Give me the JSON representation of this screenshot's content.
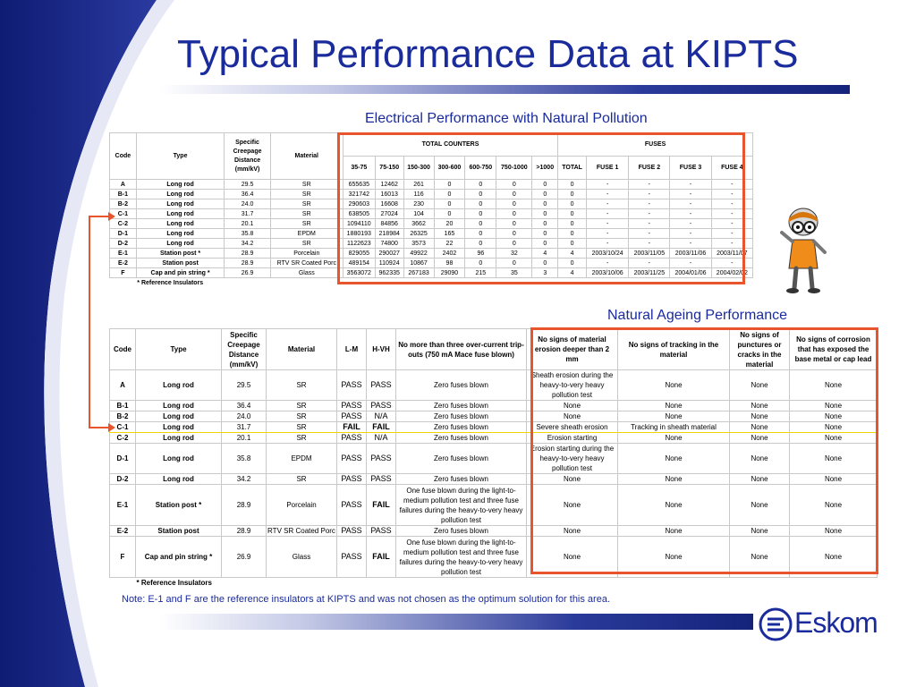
{
  "slide": {
    "title": "Typical Performance Data at KIPTS",
    "note": "Note: E-1 and F are the reference insulators at KIPTS and was not chosen as the optimum solution for this area."
  },
  "electrical": {
    "title": "Electrical Performance with Natural Pollution",
    "headers": {
      "code": "Code",
      "type": "Type",
      "creepage": "Specific Creepage Distance (mm/kV)",
      "material": "Material",
      "total_counters": "TOTAL COUNTERS",
      "fuses": "FUSES",
      "counter_ranges": [
        "35-75",
        "75-150",
        "150-300",
        "300-600",
        "600-750",
        "750-1000",
        ">1000"
      ],
      "total": "TOTAL",
      "fuse_cols": [
        "FUSE 1",
        "FUSE 2",
        "FUSE 3",
        "FUSE 4"
      ]
    },
    "rows": [
      {
        "code": "A",
        "type": "Long rod",
        "creepage": "29.5",
        "material": "SR",
        "counters": [
          "655635",
          "12462",
          "261",
          "0",
          "0",
          "0",
          "0"
        ],
        "total": "0",
        "fuses": [
          "-",
          "-",
          "-",
          "-"
        ]
      },
      {
        "code": "B-1",
        "type": "Long rod",
        "creepage": "36.4",
        "material": "SR",
        "counters": [
          "321742",
          "16013",
          "116",
          "0",
          "0",
          "0",
          "0"
        ],
        "total": "0",
        "fuses": [
          "-",
          "-",
          "-",
          "-"
        ]
      },
      {
        "code": "B-2",
        "type": "Long rod",
        "creepage": "24.0",
        "material": "SR",
        "counters": [
          "290603",
          "16608",
          "230",
          "0",
          "0",
          "0",
          "0"
        ],
        "total": "0",
        "fuses": [
          "-",
          "-",
          "-",
          "-"
        ]
      },
      {
        "code": "C-1",
        "type": "Long rod",
        "creepage": "31.7",
        "material": "SR",
        "counters": [
          "638505",
          "27024",
          "104",
          "0",
          "0",
          "0",
          "0"
        ],
        "total": "0",
        "fuses": [
          "-",
          "-",
          "-",
          "-"
        ]
      },
      {
        "code": "C-2",
        "type": "Long rod",
        "creepage": "20.1",
        "material": "SR",
        "counters": [
          "1094110",
          "84856",
          "3662",
          "20",
          "0",
          "0",
          "0"
        ],
        "total": "0",
        "fuses": [
          "-",
          "-",
          "-",
          "-"
        ]
      },
      {
        "code": "D-1",
        "type": "Long rod",
        "creepage": "35.8",
        "material": "EPDM",
        "counters": [
          "1880193",
          "218984",
          "26325",
          "165",
          "0",
          "0",
          "0"
        ],
        "total": "0",
        "fuses": [
          "-",
          "-",
          "-",
          "-"
        ]
      },
      {
        "code": "D-2",
        "type": "Long rod",
        "creepage": "34.2",
        "material": "SR",
        "counters": [
          "1122623",
          "74800",
          "3573",
          "22",
          "0",
          "0",
          "0"
        ],
        "total": "0",
        "fuses": [
          "-",
          "-",
          "-",
          "-"
        ]
      },
      {
        "code": "E-1",
        "type": "Station post *",
        "creepage": "28.9",
        "material": "Porcelain",
        "counters": [
          "829055",
          "290027",
          "49922",
          "2402",
          "96",
          "32",
          "4"
        ],
        "total": "4",
        "fuses": [
          "2003/10/24",
          "2003/11/05",
          "2003/11/06",
          "2003/11/07"
        ]
      },
      {
        "code": "E-2",
        "type": "Station post",
        "creepage": "28.9",
        "material": "RTV SR Coated Porc",
        "counters": [
          "489154",
          "110924",
          "10867",
          "98",
          "0",
          "0",
          "0"
        ],
        "total": "0",
        "fuses": [
          "-",
          "-",
          "-",
          "-"
        ]
      },
      {
        "code": "F",
        "type": "Cap and pin string *",
        "creepage": "26.9",
        "material": "Glass",
        "counters": [
          "3563072",
          "962335",
          "267183",
          "29090",
          "215",
          "35",
          "3"
        ],
        "total": "4",
        "fuses": [
          "2003/10/06",
          "2003/11/25",
          "2004/01/06",
          "2004/02/02"
        ]
      }
    ],
    "footnote": "* Reference Insulators"
  },
  "ageing": {
    "title": "Natural Ageing Performance",
    "headers": {
      "code": "Code",
      "type": "Type",
      "creepage": "Specific Creepage Distance (mm/kV)",
      "material": "Material",
      "lm": "L-M",
      "hvh": "H-VH",
      "trip": "No more than three over-current trip-outs (750 mA Mace fuse blown)",
      "erosion": "No signs of material erosion deeper than 2 mm",
      "tracking": "No signs of tracking in the material",
      "punctures": "No signs of punctures or cracks in the material",
      "corrosion": "No signs of corrosion that has exposed the base metal or cap lead"
    },
    "rows": [
      {
        "code": "A",
        "type": "Long rod",
        "creepage": "29.5",
        "material": "SR",
        "lm": "PASS",
        "hvh": "PASS",
        "trip": "Zero fuses blown",
        "erosion": "Sheath erosion during the heavy-to-very heavy pollution test",
        "tracking": "None",
        "punctures": "None",
        "corrosion": "None"
      },
      {
        "code": "B-1",
        "type": "Long rod",
        "creepage": "36.4",
        "material": "SR",
        "lm": "PASS",
        "hvh": "PASS",
        "trip": "Zero fuses blown",
        "erosion": "None",
        "tracking": "None",
        "punctures": "None",
        "corrosion": "None"
      },
      {
        "code": "B-2",
        "type": "Long rod",
        "creepage": "24.0",
        "material": "SR",
        "lm": "PASS",
        "hvh": "N/A",
        "trip": "Zero fuses blown",
        "erosion": "None",
        "tracking": "None",
        "punctures": "None",
        "corrosion": "None"
      },
      {
        "code": "C-1",
        "type": "Long rod",
        "creepage": "31.7",
        "material": "SR",
        "lm": "FAIL",
        "hvh": "FAIL",
        "trip": "Zero fuses blown",
        "erosion": "Severe sheath erosion",
        "tracking": "Tracking in sheath material",
        "punctures": "None",
        "corrosion": "None"
      },
      {
        "code": "C-2",
        "type": "Long rod",
        "creepage": "20.1",
        "material": "SR",
        "lm": "PASS",
        "hvh": "N/A",
        "trip": "Zero fuses blown",
        "erosion": "Erosion starting",
        "tracking": "None",
        "punctures": "None",
        "corrosion": "None"
      },
      {
        "code": "D-1",
        "type": "Long rod",
        "creepage": "35.8",
        "material": "EPDM",
        "lm": "PASS",
        "hvh": "PASS",
        "trip": "Zero fuses blown",
        "erosion": "Erosion starting during the heavy-to-very heavy pollution test",
        "tracking": "None",
        "punctures": "None",
        "corrosion": "None"
      },
      {
        "code": "D-2",
        "type": "Long rod",
        "creepage": "34.2",
        "material": "SR",
        "lm": "PASS",
        "hvh": "PASS",
        "trip": "Zero fuses blown",
        "erosion": "None",
        "tracking": "None",
        "punctures": "None",
        "corrosion": "None"
      },
      {
        "code": "E-1",
        "type": "Station post *",
        "creepage": "28.9",
        "material": "Porcelain",
        "lm": "PASS",
        "hvh": "FAIL",
        "trip": "One fuse blown during the light-to-medium pollution test and three fuse failures during the heavy-to-very heavy pollution test",
        "erosion": "None",
        "tracking": "None",
        "punctures": "None",
        "corrosion": "None"
      },
      {
        "code": "E-2",
        "type": "Station post",
        "creepage": "28.9",
        "material": "RTV SR Coated Porc",
        "lm": "PASS",
        "hvh": "PASS",
        "trip": "Zero fuses blown",
        "erosion": "None",
        "tracking": "None",
        "punctures": "None",
        "corrosion": "None"
      },
      {
        "code": "F",
        "type": "Cap and pin string *",
        "creepage": "26.9",
        "material": "Glass",
        "lm": "PASS",
        "hvh": "FAIL",
        "trip": "One fuse blown during the light-to-medium pollution test and three fuse failures during the heavy-to-very heavy pollution test",
        "erosion": "None",
        "tracking": "None",
        "punctures": "None",
        "corrosion": "None"
      }
    ],
    "footnote": "* Reference Insulators"
  },
  "logo": {
    "text": "Eskom"
  },
  "colors": {
    "title_blue": "#1a2b9c",
    "highlight_red": "#e8542b",
    "row_highlight_yellow": "#f2d500"
  }
}
